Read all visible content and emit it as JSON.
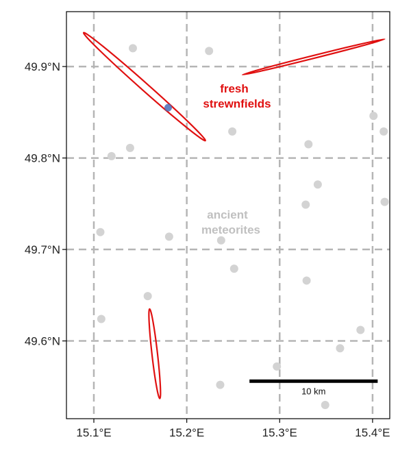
{
  "map": {
    "lon_range": [
      15.0705,
      15.4185
    ],
    "lat_range": [
      49.515,
      49.96
    ],
    "grid": true,
    "x_ticks": [
      {
        "value": 15.1,
        "label": "15.1°E"
      },
      {
        "value": 15.2,
        "label": "15.2°E"
      },
      {
        "value": 15.3,
        "label": "15.3°E"
      },
      {
        "value": 15.4,
        "label": "15.4°E"
      }
    ],
    "y_ticks": [
      {
        "value": 49.6,
        "label": "49.6°N"
      },
      {
        "value": 49.7,
        "label": "49.7°N"
      },
      {
        "value": 49.8,
        "label": "49.8°N"
      },
      {
        "value": 49.9,
        "label": "49.9°N"
      }
    ],
    "colors": {
      "strewnfield": "#e01010",
      "meteorite": "#d3d3d3",
      "highlight": "#4a6bb5",
      "grid": "#b5b5b5",
      "ancient_label": "#c0c0c0"
    },
    "ancient_meteorites": [
      {
        "lon": 15.142,
        "lat": 49.92
      },
      {
        "lon": 15.224,
        "lat": 49.917
      },
      {
        "lon": 15.119,
        "lat": 49.802
      },
      {
        "lon": 15.139,
        "lat": 49.811
      },
      {
        "lon": 15.249,
        "lat": 49.829
      },
      {
        "lon": 15.331,
        "lat": 49.815
      },
      {
        "lon": 15.401,
        "lat": 49.846
      },
      {
        "lon": 15.412,
        "lat": 49.829
      },
      {
        "lon": 15.341,
        "lat": 49.771
      },
      {
        "lon": 15.328,
        "lat": 49.749
      },
      {
        "lon": 15.413,
        "lat": 49.752
      },
      {
        "lon": 15.107,
        "lat": 49.719
      },
      {
        "lon": 15.181,
        "lat": 49.714
      },
      {
        "lon": 15.237,
        "lat": 49.71
      },
      {
        "lon": 15.251,
        "lat": 49.679
      },
      {
        "lon": 15.329,
        "lat": 49.666
      },
      {
        "lon": 15.158,
        "lat": 49.649
      },
      {
        "lon": 15.108,
        "lat": 49.624
      },
      {
        "lon": 15.387,
        "lat": 49.612
      },
      {
        "lon": 15.365,
        "lat": 49.592
      },
      {
        "lon": 15.297,
        "lat": 49.572
      },
      {
        "lon": 15.236,
        "lat": 49.552
      },
      {
        "lon": 15.349,
        "lat": 49.53
      }
    ],
    "strewnfields": [
      {
        "start": {
          "lon": 15.089,
          "lat": 49.937
        },
        "end": {
          "lon": 15.22,
          "lat": 49.819
        },
        "width": 0.004
      },
      {
        "start": {
          "lon": 15.26,
          "lat": 49.891
        },
        "end": {
          "lon": 15.413,
          "lat": 49.93
        },
        "width": 0.0015
      },
      {
        "start": {
          "lon": 15.16,
          "lat": 49.635
        },
        "end": {
          "lon": 15.171,
          "lat": 49.537
        },
        "width": 0.003
      }
    ],
    "highlight_point": {
      "lon": 15.18,
      "lat": 49.855
    },
    "labels": {
      "fresh_line1": "fresh",
      "fresh_line2": "strewnfields",
      "ancient_line1": "ancient",
      "ancient_line2": "meteorites"
    },
    "scale_bar": {
      "label": "10 km",
      "lon_start": 15.2675,
      "lon_end": 15.4055,
      "lat": 49.556
    }
  }
}
